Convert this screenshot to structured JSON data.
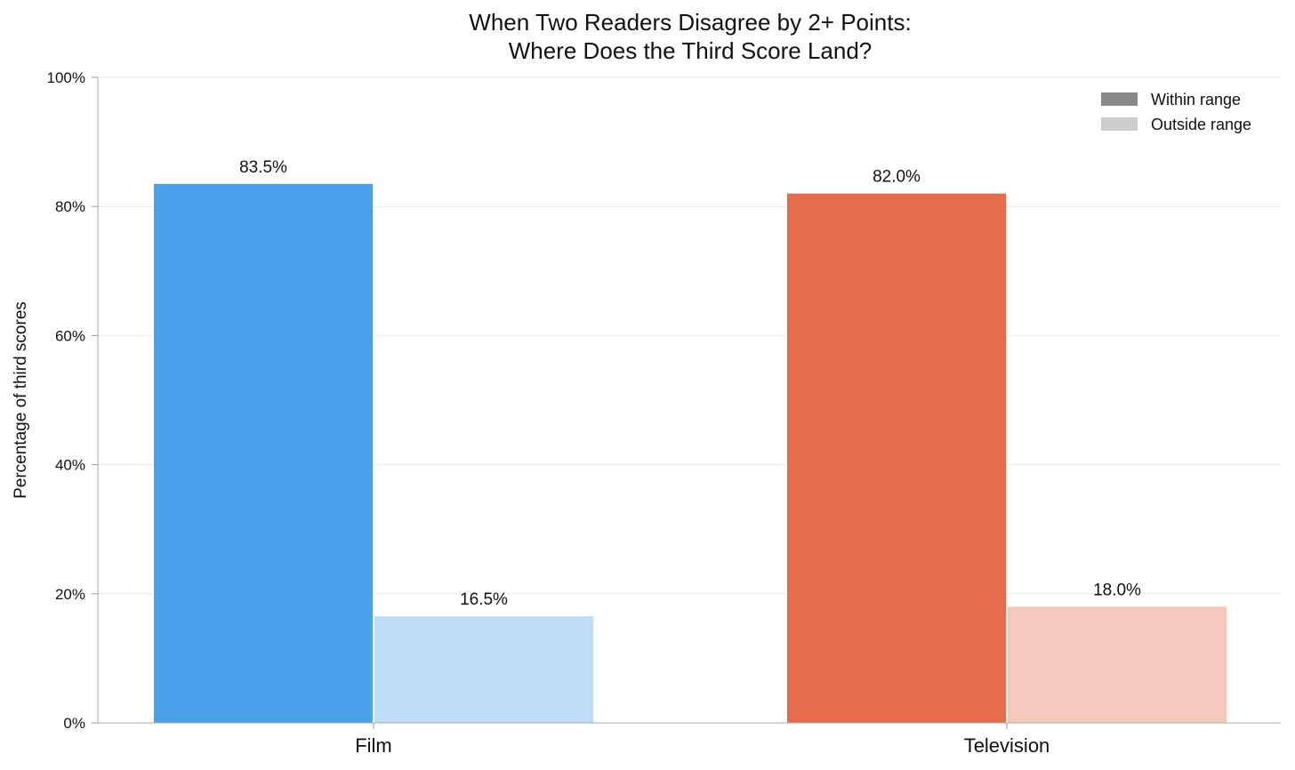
{
  "chart_data": {
    "type": "bar",
    "title_lines": [
      "When Two Readers Disagree by 2+ Points:",
      "Where Does the Third Score Land?"
    ],
    "ylabel": "Percentage of third scores",
    "xlabel": "",
    "ylim": [
      0,
      100
    ],
    "yticks": [
      0,
      20,
      40,
      60,
      80,
      100
    ],
    "ytick_labels": [
      "0%",
      "20%",
      "40%",
      "60%",
      "80%",
      "100%"
    ],
    "grid": true,
    "legend_position": "top-right",
    "categories": [
      "Film",
      "Television"
    ],
    "series": [
      {
        "name": "Within range",
        "values": [
          83.5,
          82.0
        ],
        "labels": [
          "83.5%",
          "82.0%"
        ],
        "colors": [
          "#4BA0EA",
          "#E56C4B"
        ],
        "legend_color": "#888888"
      },
      {
        "name": "Outside range",
        "values": [
          16.5,
          18.0
        ],
        "labels": [
          "16.5%",
          "18.0%"
        ],
        "colors": [
          "#BFDDF7",
          "#F5C8BC"
        ],
        "legend_color": "#CCCCCC"
      }
    ]
  }
}
